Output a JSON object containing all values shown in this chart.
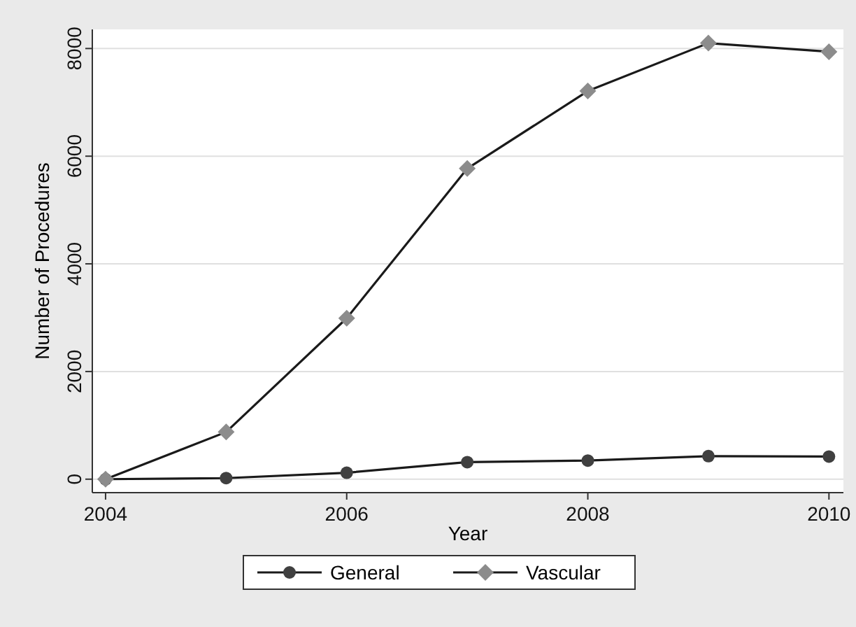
{
  "chart_data": {
    "type": "line",
    "xlabel": "Year",
    "ylabel": "Number of Procedures",
    "x": [
      2004,
      2005,
      2006,
      2007,
      2008,
      2009,
      2010
    ],
    "series": [
      {
        "name": "General",
        "color": "#404040",
        "marker": "circle",
        "values": [
          0,
          20,
          120,
          316,
          346,
          428,
          420
        ]
      },
      {
        "name": "Vascular",
        "color": "#8c8c8c",
        "marker": "diamond",
        "values": [
          0,
          876,
          2990,
          5770,
          7210,
          8100,
          7940
        ]
      }
    ],
    "xlim": [
      2003.89,
      2010.12
    ],
    "xticks": [
      2004,
      2006,
      2008,
      2010
    ],
    "ylim": [
      -250,
      8355
    ],
    "yticks": [
      0,
      2000,
      4000,
      6000,
      8000
    ],
    "grid": "y",
    "legend": "bottom"
  }
}
